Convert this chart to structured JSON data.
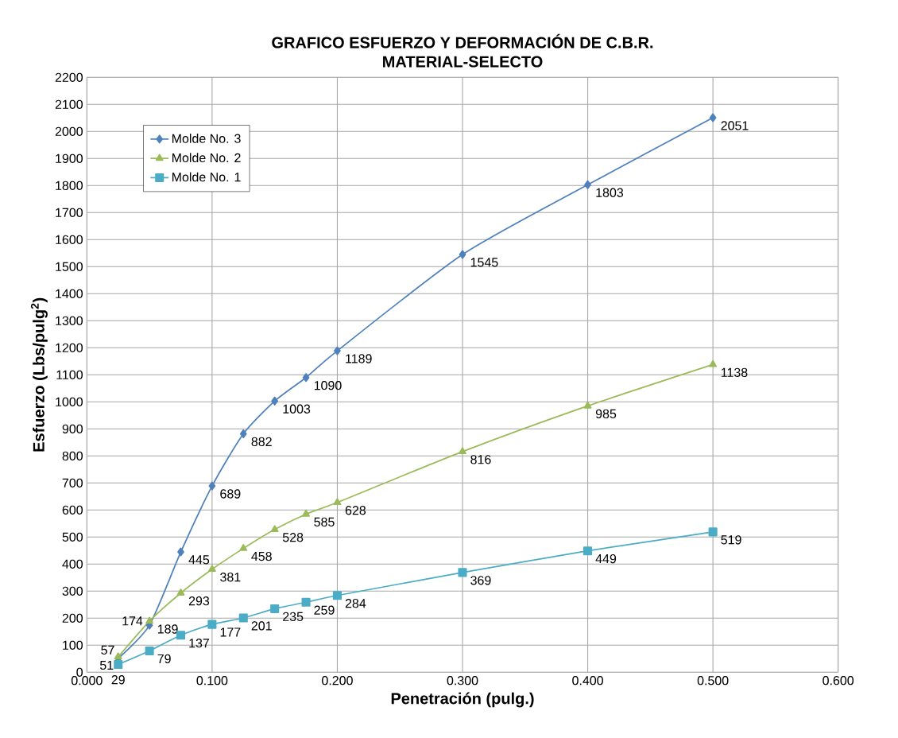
{
  "chart_data": {
    "type": "line",
    "title": "GRAFICO ESFUERZO Y DEFORMACIÓN DE C.B.R.",
    "subtitle": "MATERIAL-SELECTO",
    "xlabel": "Penetración (pulg.)",
    "ylabel": "Esfuerzo (Lbs/pulg$^{2}$)",
    "x": [
      0.025,
      0.05,
      0.075,
      0.1,
      0.125,
      0.15,
      0.175,
      0.2,
      0.3,
      0.4,
      0.5
    ],
    "series": [
      {
        "name": "Molde No. 3",
        "color": "#4f81bd",
        "marker": "diamond",
        "values": [
          51,
          174,
          445,
          689,
          882,
          1003,
          1090,
          1189,
          1545,
          1803,
          2051
        ]
      },
      {
        "name": "Molde No. 2",
        "color": "#9bbb59",
        "marker": "triangle",
        "values": [
          57,
          189,
          293,
          381,
          458,
          528,
          585,
          628,
          816,
          985,
          1138
        ]
      },
      {
        "name": "Molde No. 1",
        "color": "#4bacc6",
        "marker": "square",
        "values": [
          29,
          79,
          137,
          177,
          201,
          235,
          259,
          284,
          369,
          449,
          519
        ]
      }
    ],
    "xlim": [
      0,
      0.6
    ],
    "xticks": [
      {
        "value": 0,
        "label": "0.000"
      },
      {
        "value": 0.1,
        "label": "0.100"
      },
      {
        "value": 0.2,
        "label": "0.200"
      },
      {
        "value": 0.3,
        "label": "0.300"
      },
      {
        "value": 0.4,
        "label": "0.400"
      },
      {
        "value": 0.5,
        "label": "0.500"
      },
      {
        "value": 0.6,
        "label": "0.600"
      }
    ],
    "ylim": [
      0,
      2200
    ],
    "yticks": [
      0,
      100,
      200,
      300,
      400,
      500,
      600,
      700,
      800,
      900,
      1000,
      1100,
      1200,
      1300,
      1400,
      1500,
      1600,
      1700,
      1800,
      1900,
      2000,
      2100,
      2200
    ],
    "grid": true,
    "legend": "top left",
    "data_labels": true,
    "line_style": "solid"
  }
}
